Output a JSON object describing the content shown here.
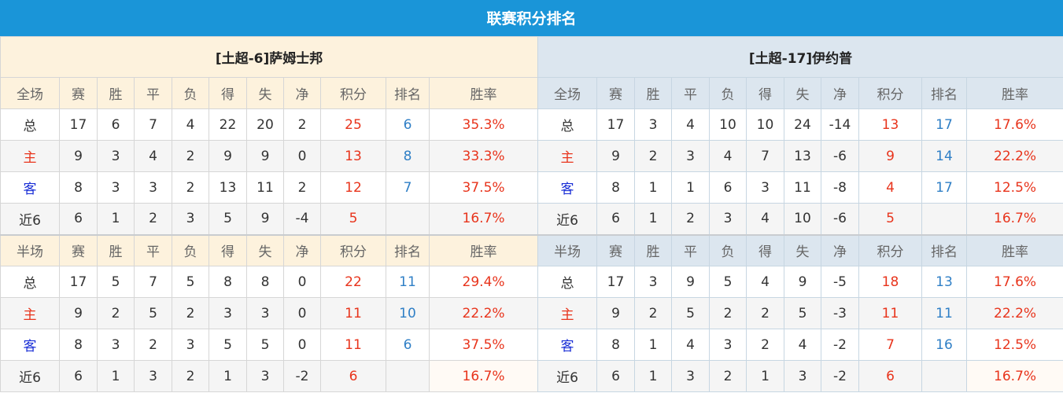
{
  "title": "联赛积分排名",
  "colors": {
    "header": "#1a95d8",
    "points": "#e8341c",
    "rank": "#2f7fc6"
  },
  "teams": [
    {
      "name": "[土超-6]萨姆士邦",
      "sections": [
        {
          "headers": [
            "全场",
            "赛",
            "胜",
            "平",
            "负",
            "得",
            "失",
            "净",
            "积分",
            "排名",
            "胜率"
          ],
          "rows": [
            [
              "总",
              "17",
              "6",
              "7",
              "4",
              "22",
              "20",
              "2",
              "25",
              "6",
              "35.3%"
            ],
            [
              "主",
              "9",
              "3",
              "4",
              "2",
              "9",
              "9",
              "0",
              "13",
              "8",
              "33.3%"
            ],
            [
              "客",
              "8",
              "3",
              "3",
              "2",
              "13",
              "11",
              "2",
              "12",
              "7",
              "37.5%"
            ],
            [
              "近6",
              "6",
              "1",
              "2",
              "3",
              "5",
              "9",
              "-4",
              "5",
              "",
              "16.7%"
            ]
          ]
        },
        {
          "headers": [
            "半场",
            "赛",
            "胜",
            "平",
            "负",
            "得",
            "失",
            "净",
            "积分",
            "排名",
            "胜率"
          ],
          "rows": [
            [
              "总",
              "17",
              "5",
              "7",
              "5",
              "8",
              "8",
              "0",
              "22",
              "11",
              "29.4%"
            ],
            [
              "主",
              "9",
              "2",
              "5",
              "2",
              "3",
              "3",
              "0",
              "11",
              "10",
              "22.2%"
            ],
            [
              "客",
              "8",
              "3",
              "2",
              "3",
              "5",
              "5",
              "0",
              "11",
              "6",
              "37.5%"
            ],
            [
              "近6",
              "6",
              "1",
              "3",
              "2",
              "1",
              "3",
              "-2",
              "6",
              "",
              "16.7%"
            ]
          ]
        }
      ]
    },
    {
      "name": "[土超-17]伊约普",
      "sections": [
        {
          "headers": [
            "全场",
            "赛",
            "胜",
            "平",
            "负",
            "得",
            "失",
            "净",
            "积分",
            "排名",
            "胜率"
          ],
          "rows": [
            [
              "总",
              "17",
              "3",
              "4",
              "10",
              "10",
              "24",
              "-14",
              "13",
              "17",
              "17.6%"
            ],
            [
              "主",
              "9",
              "2",
              "3",
              "4",
              "7",
              "13",
              "-6",
              "9",
              "14",
              "22.2%"
            ],
            [
              "客",
              "8",
              "1",
              "1",
              "6",
              "3",
              "11",
              "-8",
              "4",
              "17",
              "12.5%"
            ],
            [
              "近6",
              "6",
              "1",
              "2",
              "3",
              "4",
              "10",
              "-6",
              "5",
              "",
              "16.7%"
            ]
          ]
        },
        {
          "headers": [
            "半场",
            "赛",
            "胜",
            "平",
            "负",
            "得",
            "失",
            "净",
            "积分",
            "排名",
            "胜率"
          ],
          "rows": [
            [
              "总",
              "17",
              "3",
              "9",
              "5",
              "4",
              "9",
              "-5",
              "18",
              "13",
              "17.6%"
            ],
            [
              "主",
              "9",
              "2",
              "5",
              "2",
              "2",
              "5",
              "-3",
              "11",
              "11",
              "22.2%"
            ],
            [
              "客",
              "8",
              "1",
              "4",
              "3",
              "2",
              "4",
              "-2",
              "7",
              "16",
              "12.5%"
            ],
            [
              "近6",
              "6",
              "1",
              "3",
              "2",
              "1",
              "3",
              "-2",
              "6",
              "",
              "16.7%"
            ]
          ]
        }
      ]
    }
  ]
}
